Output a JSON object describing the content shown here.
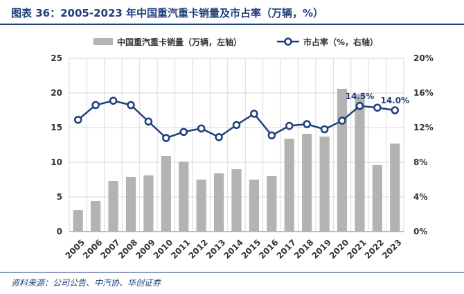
{
  "header": {
    "title": "图表 36：2005-2023 年中国重汽重卡销量及市占率（万辆，%）"
  },
  "footer": {
    "source": "资料来源：公司公告、中汽协、华创证券"
  },
  "chart_data": {
    "type": "bar",
    "categories": [
      "2005",
      "2006",
      "2007",
      "2008",
      "2009",
      "2010",
      "2011",
      "2012",
      "2013",
      "2014",
      "2015",
      "2016",
      "2017",
      "2018",
      "2019",
      "2020",
      "2021",
      "2022",
      "2023"
    ],
    "series": [
      {
        "name": "中国重汽重卡销量（万辆，左轴）",
        "type": "bar",
        "axis": "left",
        "color": "#b3b3b3",
        "values": [
          3.1,
          4.4,
          7.3,
          7.9,
          8.1,
          10.9,
          10.1,
          7.5,
          8.4,
          9.0,
          7.5,
          8.0,
          13.4,
          14.1,
          13.7,
          20.6,
          19.8,
          9.6,
          12.7
        ]
      },
      {
        "name": "市占率（%，右轴）",
        "type": "line",
        "axis": "right",
        "color": "#1f3f7a",
        "values": [
          12.9,
          14.6,
          15.1,
          14.6,
          12.7,
          10.8,
          11.5,
          11.9,
          10.9,
          12.3,
          13.6,
          11.1,
          12.2,
          12.4,
          11.8,
          12.8,
          14.5,
          14.3,
          14.0
        ]
      }
    ],
    "y_left": {
      "min": 0,
      "max": 25,
      "ticks": [
        "0",
        "5",
        "10",
        "15",
        "20",
        "25"
      ],
      "tick_values": [
        0,
        5,
        10,
        15,
        20,
        25
      ]
    },
    "y_right": {
      "min": 0,
      "max": 20,
      "ticks": [
        "0%",
        "4%",
        "8%",
        "12%",
        "16%",
        "20%"
      ],
      "tick_values": [
        0,
        4,
        8,
        12,
        16,
        20
      ]
    },
    "data_labels": [
      {
        "index": 16,
        "series": 1,
        "text": "14.5%"
      },
      {
        "index": 18,
        "series": 1,
        "text": "14.0%"
      }
    ],
    "grid": true,
    "legend": "top"
  }
}
